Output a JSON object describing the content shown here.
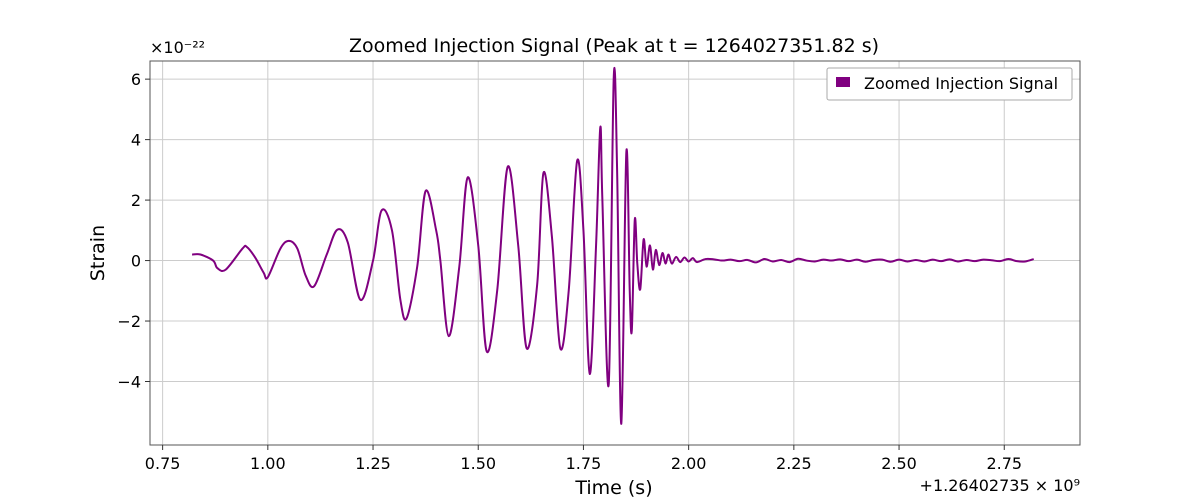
{
  "chart_data": {
    "type": "line",
    "title": "Zoomed Injection Signal (Peak at t = 1264027351.82 s)",
    "xlabel": "Time (s)",
    "ylabel": "Strain",
    "y_multiplier_label": "×10⁻²²",
    "x_offset_label": "+1.26402735 × 10⁹",
    "xlim": [
      0.72,
      2.93
    ],
    "ylim": [
      -6.1,
      6.6
    ],
    "xticks": [
      0.75,
      1.0,
      1.25,
      1.5,
      1.75,
      2.0,
      2.25,
      2.5,
      2.75
    ],
    "xtick_labels": [
      "0.75",
      "1.00",
      "1.25",
      "1.50",
      "1.75",
      "2.00",
      "2.25",
      "2.50",
      "2.75"
    ],
    "yticks": [
      -4,
      -2,
      0,
      2,
      4,
      6
    ],
    "ytick_labels": [
      "−4",
      "−2",
      "0",
      "2",
      "4",
      "6"
    ],
    "grid": true,
    "legend_position": "top-right",
    "series": [
      {
        "name": "Zoomed Injection Signal",
        "color": "#800080",
        "x": [
          0.82,
          0.84,
          0.87,
          0.88,
          0.9,
          0.94,
          0.95,
          0.97,
          0.99,
          1.0,
          1.03,
          1.05,
          1.07,
          1.09,
          1.11,
          1.14,
          1.165,
          1.19,
          1.22,
          1.25,
          1.27,
          1.295,
          1.315,
          1.33,
          1.355,
          1.375,
          1.4,
          1.41,
          1.43,
          1.455,
          1.475,
          1.5,
          1.52,
          1.545,
          1.57,
          1.595,
          1.615,
          1.64,
          1.655,
          1.675,
          1.695,
          1.715,
          1.735,
          1.75,
          1.765,
          1.78,
          1.79,
          1.795,
          1.81,
          1.822,
          1.83,
          1.84,
          1.852,
          1.86,
          1.865,
          1.872,
          1.878,
          1.885,
          1.893,
          1.9,
          1.908,
          1.915,
          1.922,
          1.93,
          1.938,
          1.945,
          1.952,
          1.96,
          1.97,
          1.98,
          1.99,
          2.0,
          2.01,
          2.02,
          2.04,
          2.06,
          2.08,
          2.1,
          2.12,
          2.14,
          2.16,
          2.18,
          2.2,
          2.22,
          2.24,
          2.26,
          2.28,
          2.3,
          2.32,
          2.34,
          2.36,
          2.38,
          2.4,
          2.42,
          2.44,
          2.46,
          2.48,
          2.5,
          2.52,
          2.54,
          2.56,
          2.58,
          2.6,
          2.62,
          2.64,
          2.66,
          2.68,
          2.7,
          2.72,
          2.74,
          2.76,
          2.78,
          2.8,
          2.82
        ],
        "y": [
          0.2,
          0.2,
          0.0,
          -0.25,
          -0.3,
          0.4,
          0.45,
          0.1,
          -0.4,
          -0.55,
          0.4,
          0.65,
          0.4,
          -0.5,
          -0.85,
          0.2,
          1.02,
          0.6,
          -1.3,
          0.0,
          1.65,
          1.0,
          -1.3,
          -1.9,
          -0.2,
          2.3,
          1.0,
          0.0,
          -2.5,
          -0.2,
          2.75,
          0.5,
          -3.0,
          -1.0,
          3.1,
          0.5,
          -2.9,
          -0.8,
          2.9,
          0.8,
          -2.9,
          -1.0,
          3.3,
          1.0,
          -3.75,
          0.5,
          4.4,
          2.0,
          -4.1,
          6.05,
          3.0,
          -5.4,
          3.6,
          -1.0,
          -2.3,
          1.35,
          -0.1,
          -0.95,
          0.7,
          -0.2,
          0.5,
          -0.3,
          0.35,
          -0.15,
          0.25,
          -0.1,
          0.2,
          -0.1,
          0.12,
          -0.05,
          0.1,
          -0.03,
          0.08,
          -0.05,
          0.05,
          0.04,
          0.0,
          0.03,
          -0.02,
          0.02,
          -0.06,
          0.05,
          -0.03,
          0.02,
          -0.05,
          0.06,
          0.0,
          -0.03,
          0.03,
          0.0,
          0.04,
          -0.02,
          0.03,
          -0.04,
          0.02,
          0.03,
          -0.04,
          0.03,
          -0.03,
          0.02,
          -0.03,
          0.03,
          -0.02,
          0.04,
          -0.03,
          0.02,
          -0.02,
          0.03,
          0.01,
          -0.02,
          0.05,
          -0.02,
          -0.03,
          0.05
        ]
      }
    ]
  }
}
